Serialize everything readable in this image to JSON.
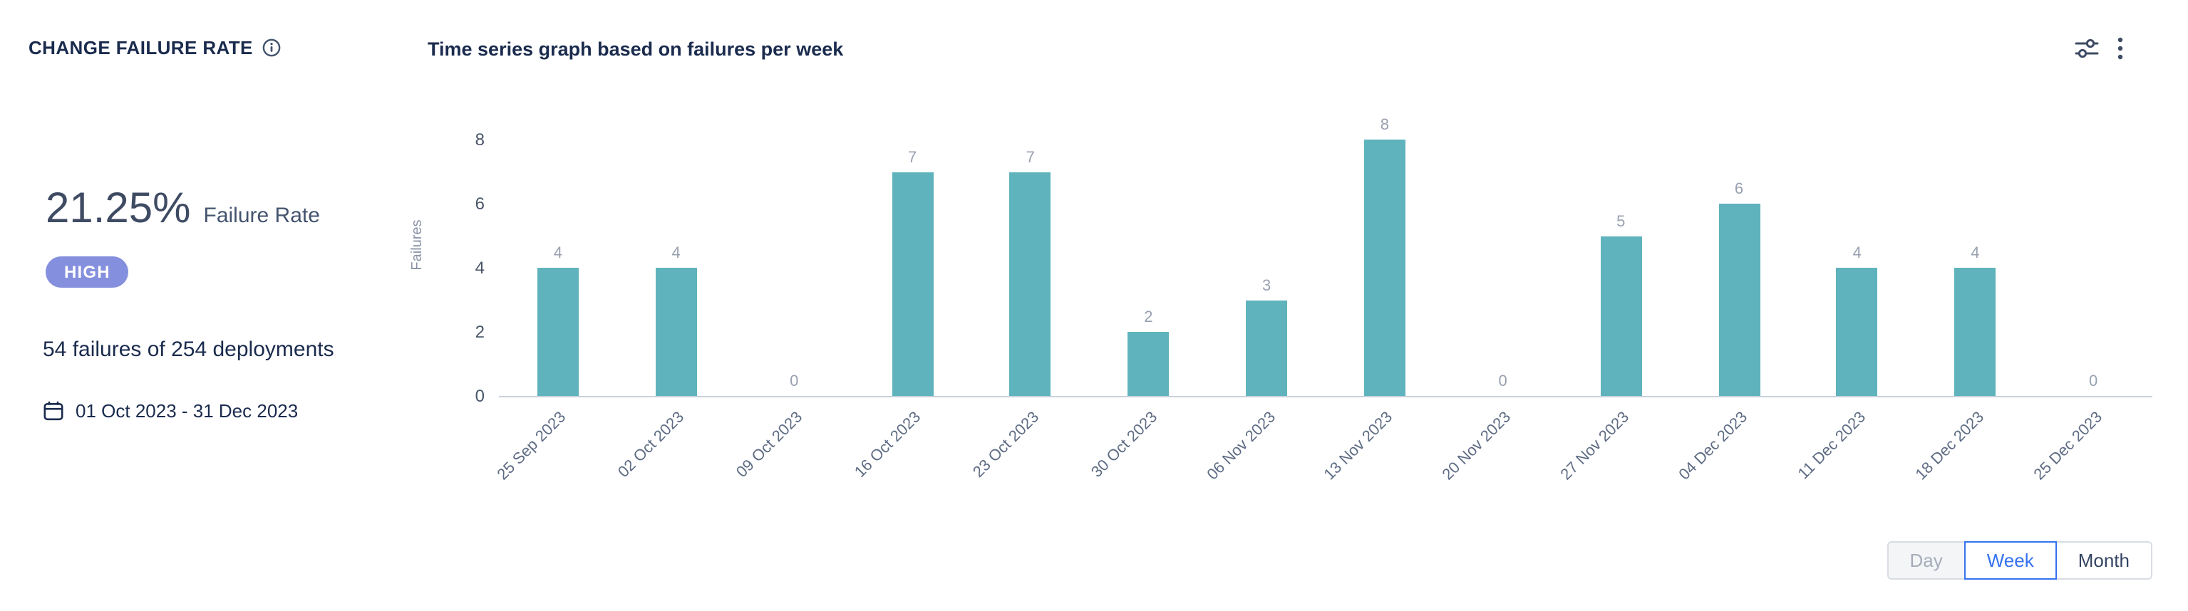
{
  "header": {
    "title": "CHANGE FAILURE RATE",
    "chart_title": "Time series graph based on failures per week"
  },
  "summary": {
    "rate_value": "21.25%",
    "rate_label": "Failure Rate",
    "badge": "HIGH",
    "detail": "54 failures of 254 deployments",
    "date_range": "01 Oct 2023 - 31 Dec 2023"
  },
  "icons": {
    "info": "info-icon",
    "settings": "sliders-icon",
    "more": "kebab-menu-icon",
    "calendar": "calendar-icon"
  },
  "granularity": {
    "options": [
      {
        "label": "Day",
        "state": "disabled"
      },
      {
        "label": "Week",
        "state": "selected"
      },
      {
        "label": "Month",
        "state": "default"
      }
    ]
  },
  "chart_data": {
    "type": "bar",
    "title": "Time series graph based on failures per week",
    "xlabel": "",
    "ylabel": "Failures",
    "ylim": [
      0,
      8
    ],
    "yticks": [
      0,
      2,
      4,
      6,
      8
    ],
    "grid": false,
    "legend": "none",
    "categories": [
      "25 Sep 2023",
      "02 Oct 2023",
      "09 Oct 2023",
      "16 Oct 2023",
      "23 Oct 2023",
      "30 Oct 2023",
      "06 Nov 2023",
      "13 Nov 2023",
      "20 Nov 2023",
      "27 Nov 2023",
      "04 Dec 2023",
      "11 Dec 2023",
      "18 Dec 2023",
      "25 Dec 2023"
    ],
    "values": [
      4,
      4,
      0,
      7,
      7,
      2,
      3,
      8,
      0,
      5,
      6,
      4,
      4,
      0
    ],
    "bar_color": "#5FB3BD",
    "value_label_color": "#98A1B0"
  },
  "colors": {
    "badge_bg": "#8490DD",
    "accent_blue": "#3572EF",
    "bar": "#5FB3BD"
  }
}
